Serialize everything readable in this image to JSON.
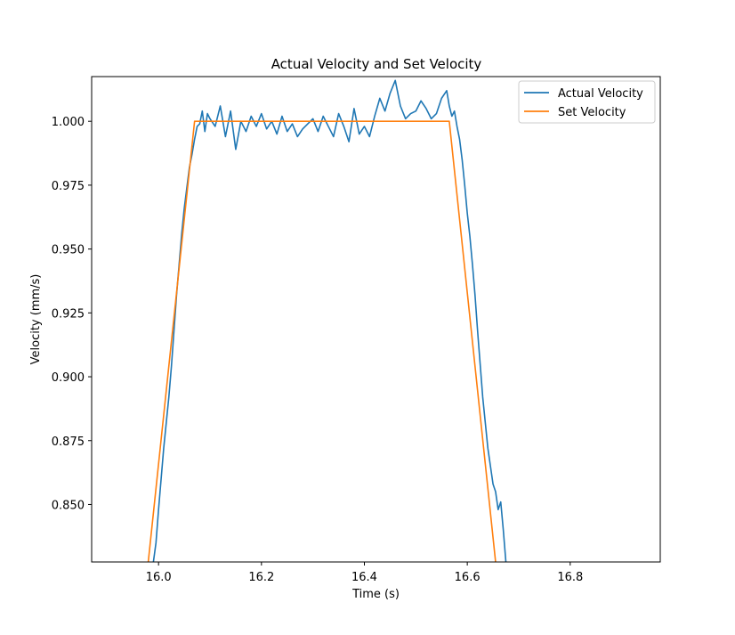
{
  "chart_data": {
    "type": "line",
    "title": "Actual Velocity and Set Velocity",
    "xlabel": "Time (s)",
    "ylabel": "Velocity (mm/s)",
    "xlim": [
      15.87,
      16.975
    ],
    "ylim": [
      0.8275,
      1.0175
    ],
    "xticks": [
      16.0,
      16.2,
      16.4,
      16.6,
      16.8
    ],
    "xtick_labels": [
      "16.0",
      "16.2",
      "16.4",
      "16.6",
      "16.8"
    ],
    "yticks": [
      0.85,
      0.875,
      0.9,
      0.925,
      0.95,
      0.975,
      1.0
    ],
    "ytick_labels": [
      "0.850",
      "0.875",
      "0.900",
      "0.925",
      "0.950",
      "0.975",
      "1.000"
    ],
    "grid": false,
    "legend_position": "top-right",
    "series": [
      {
        "name": "Actual Velocity",
        "color": "#1f77b4",
        "x": [
          15.99,
          15.995,
          16.0,
          16.005,
          16.01,
          16.015,
          16.02,
          16.025,
          16.03,
          16.035,
          16.04,
          16.045,
          16.05,
          16.055,
          16.06,
          16.065,
          16.07,
          16.075,
          16.08,
          16.085,
          16.09,
          16.095,
          16.1,
          16.11,
          16.12,
          16.13,
          16.14,
          16.15,
          16.16,
          16.17,
          16.18,
          16.19,
          16.2,
          16.21,
          16.22,
          16.23,
          16.24,
          16.25,
          16.26,
          16.27,
          16.28,
          16.29,
          16.3,
          16.31,
          16.32,
          16.33,
          16.34,
          16.35,
          16.36,
          16.37,
          16.38,
          16.39,
          16.4,
          16.41,
          16.42,
          16.43,
          16.44,
          16.45,
          16.46,
          16.47,
          16.48,
          16.49,
          16.5,
          16.51,
          16.52,
          16.53,
          16.54,
          16.55,
          16.56,
          16.565,
          16.57,
          16.575,
          16.58,
          16.585,
          16.59,
          16.595,
          16.6,
          16.605,
          16.61,
          16.615,
          16.62,
          16.625,
          16.63,
          16.635,
          16.64,
          16.645,
          16.65,
          16.655,
          16.66,
          16.665,
          16.67,
          16.675
        ],
        "y": [
          0.8275,
          0.835,
          0.848,
          0.86,
          0.872,
          0.882,
          0.892,
          0.904,
          0.918,
          0.932,
          0.944,
          0.956,
          0.966,
          0.974,
          0.982,
          0.987,
          0.993,
          0.998,
          0.999,
          1.004,
          0.996,
          1.003,
          1.001,
          0.998,
          1.006,
          0.994,
          1.004,
          0.989,
          1.0,
          0.996,
          1.002,
          0.998,
          1.003,
          0.997,
          1.0,
          0.995,
          1.002,
          0.996,
          0.999,
          0.994,
          0.997,
          0.999,
          1.001,
          0.996,
          1.002,
          0.998,
          0.994,
          1.003,
          0.998,
          0.992,
          1.005,
          0.995,
          0.998,
          0.994,
          1.002,
          1.009,
          1.004,
          1.011,
          1.016,
          1.006,
          1.001,
          1.003,
          1.004,
          1.008,
          1.005,
          1.001,
          1.003,
          1.009,
          1.012,
          1.006,
          1.002,
          1.004,
          0.998,
          0.993,
          0.985,
          0.975,
          0.964,
          0.955,
          0.944,
          0.932,
          0.918,
          0.905,
          0.892,
          0.882,
          0.872,
          0.865,
          0.858,
          0.855,
          0.848,
          0.851,
          0.84,
          0.8275
        ]
      },
      {
        "name": "Set Velocity",
        "color": "#ff7f0e",
        "x": [
          15.98,
          16.07,
          16.565,
          16.655
        ],
        "y": [
          0.8275,
          1.0,
          1.0,
          0.8275
        ]
      }
    ]
  }
}
